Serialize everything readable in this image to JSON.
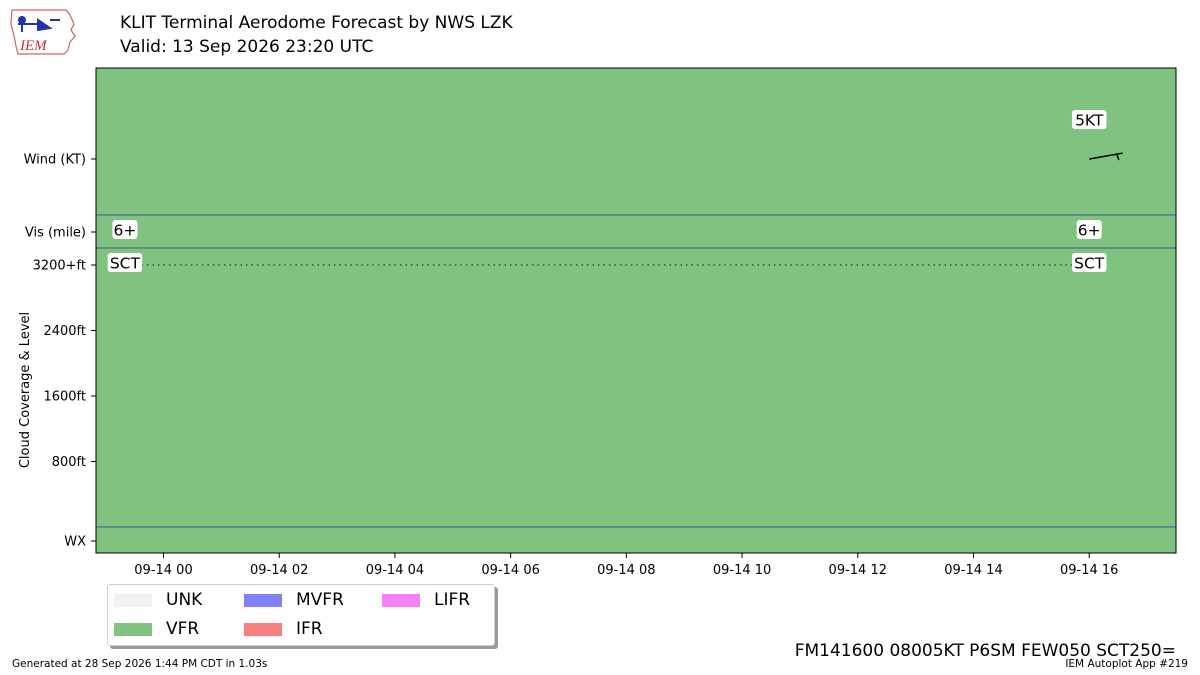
{
  "header": {
    "title": "KLIT Terminal Aerodome Forecast by NWS LZK",
    "subtitle": "Valid: 13 Sep 2026 23:20 UTC"
  },
  "logo": {
    "text": "IEM"
  },
  "colors": {
    "vfr": "#80c280",
    "unk": "#f2f2f2",
    "mvfr": "#8080f8",
    "ifr": "#f88080",
    "lifr": "#f880f8",
    "divider": "#3a5a8a"
  },
  "chart_data": {
    "type": "timeline",
    "title": "KLIT Terminal Aerodome Forecast by NWS LZK",
    "subtitle": "Valid: 13 Sep 2026 23:20 UTC",
    "ylabel": "Cloud Coverage & Level",
    "x_ticks": [
      "09-14 00",
      "09-14 02",
      "09-14 04",
      "09-14 06",
      "09-14 08",
      "09-14 10",
      "09-14 12",
      "09-14 14",
      "09-14 16"
    ],
    "xlim": [
      "2026-09-13T22:50Z",
      "2026-09-14T17:30Z"
    ],
    "rows": [
      "Wind (KT)",
      "Vis (mile)",
      "3200+ft",
      "2400ft",
      "1600ft",
      "800ft",
      "WX"
    ],
    "cloud_ylim": [
      0,
      3200
    ],
    "flight_category": [
      {
        "start": "2026-09-13T22:50Z",
        "end": "2026-09-14T17:30Z",
        "category": "VFR"
      }
    ],
    "forecasts": [
      {
        "time": "2026-09-13T23:20Z",
        "vis": "6+",
        "cloud_cover": "SCT",
        "cloud_level": "3200+ft"
      },
      {
        "time": "2026-09-14T16:00Z",
        "vis": "6+",
        "cloud_cover": "SCT",
        "cloud_level": "3200+ft",
        "wind_speed_kt": 5,
        "wind_dir_deg": 80,
        "wind_label": "5KT"
      }
    ],
    "legend": {
      "placement": "lower-left, below axes",
      "items": [
        {
          "label": "UNK",
          "color": "#f2f2f2"
        },
        {
          "label": "MVFR",
          "color": "#8080f8"
        },
        {
          "label": "LIFR",
          "color": "#f880f8"
        },
        {
          "label": "VFR",
          "color": "#80c280"
        },
        {
          "label": "IFR",
          "color": "#f88080"
        }
      ]
    }
  },
  "footer": {
    "raw_taf": "FM141600 08005KT P6SM FEW050 SCT250=",
    "generated": "Generated at 28 Sep 2026 1:44 PM CDT in 1.03s",
    "app_id": "IEM Autoplot App #219"
  }
}
